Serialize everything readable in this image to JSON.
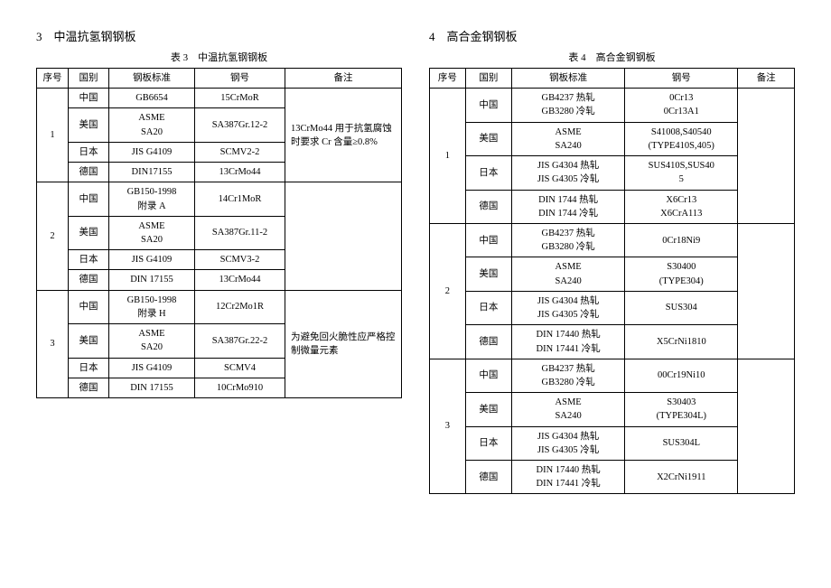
{
  "left": {
    "section_title": "3　中温抗氢钢钢板",
    "table_caption": "表 3　中温抗氢钢钢板",
    "headers": {
      "seq": "序号",
      "country": "国别",
      "standard": "钢板标准",
      "steel": "钢号",
      "note": "备注"
    },
    "groups": [
      {
        "seq": "1",
        "note": "13CrMo44 用于抗氢腐蚀时要求 Cr 含量≥0.8%",
        "rows": [
          {
            "country": "中国",
            "standard": "GB6654",
            "steel": "15CrMoR"
          },
          {
            "country": "美国",
            "standard": "ASME\nSA20",
            "steel": "SA387Gr.12-2"
          },
          {
            "country": "日本",
            "standard": "JIS G4109",
            "steel": "SCMV2-2"
          },
          {
            "country": "德国",
            "standard": "DIN17155",
            "steel": "13CrMo44"
          }
        ]
      },
      {
        "seq": "2",
        "note": "",
        "rows": [
          {
            "country": "中国",
            "standard": "GB150-1998\n附录 A",
            "steel": "14Cr1MoR"
          },
          {
            "country": "美国",
            "standard": "ASME\nSA20",
            "steel": "SA387Gr.11-2"
          },
          {
            "country": "日本",
            "standard": "JIS G4109",
            "steel": "SCMV3-2"
          },
          {
            "country": "德国",
            "standard": "DIN 17155",
            "steel": "13CrMo44"
          }
        ]
      },
      {
        "seq": "3",
        "note": "为避免回火脆性应严格控制微量元素",
        "rows": [
          {
            "country": "中国",
            "standard": "GB150-1998\n附录 H",
            "steel": "12Cr2Mo1R"
          },
          {
            "country": "美国",
            "standard": "ASME\nSA20",
            "steel": "SA387Gr.22-2"
          },
          {
            "country": "日本",
            "standard": "JIS G4109",
            "steel": "SCMV4"
          },
          {
            "country": "德国",
            "standard": "DIN 17155",
            "steel": "10CrMo910"
          }
        ]
      }
    ]
  },
  "right": {
    "section_title": "4　高合金钢钢板",
    "table_caption": "表 4　高合金钢钢板",
    "headers": {
      "seq": "序号",
      "country": "国别",
      "standard": "钢板标准",
      "steel": "钢号",
      "note": "备注"
    },
    "groups": [
      {
        "seq": "1",
        "note": "",
        "rows": [
          {
            "country": "中国",
            "standard": "GB4237 热轧\nGB3280 冷轧",
            "steel": "0Cr13\n0Cr13A1"
          },
          {
            "country": "美国",
            "standard": "ASME\nSA240",
            "steel": "S41008,S40540\n(TYPE410S,405)"
          },
          {
            "country": "日本",
            "standard": "JIS G4304 热轧\nJIS G4305 冷轧",
            "steel": "SUS410S,SUS40\n5"
          },
          {
            "country": "德国",
            "standard": "DIN 1744 热轧\nDIN 1744 冷轧",
            "steel": "X6Cr13\nX6CrA113"
          }
        ]
      },
      {
        "seq": "2",
        "note": "",
        "rows": [
          {
            "country": "中国",
            "standard": "GB4237 热轧\nGB3280 冷轧",
            "steel": "0Cr18Ni9"
          },
          {
            "country": "美国",
            "standard": "ASME\nSA240",
            "steel": "S30400\n(TYPE304)"
          },
          {
            "country": "日本",
            "standard": "JIS G4304 热轧\nJIS G4305 冷轧",
            "steel": "SUS304"
          },
          {
            "country": "德国",
            "standard": "DIN 17440 热轧\nDIN 17441 冷轧",
            "steel": "X5CrNi1810"
          }
        ]
      },
      {
        "seq": "3",
        "note": "",
        "rows": [
          {
            "country": "中国",
            "standard": "GB4237 热轧\nGB3280 冷轧",
            "steel": "00Cr19Ni10"
          },
          {
            "country": "美国",
            "standard": "ASME\nSA240",
            "steel": "S30403\n(TYPE304L)"
          },
          {
            "country": "日本",
            "standard": "JIS G4304 热轧\nJIS G4305 冷轧",
            "steel": "SUS304L"
          },
          {
            "country": "德国",
            "standard": "DIN 17440 热轧\nDIN 17441 冷轧",
            "steel": "X2CrNi1911"
          }
        ]
      }
    ]
  }
}
